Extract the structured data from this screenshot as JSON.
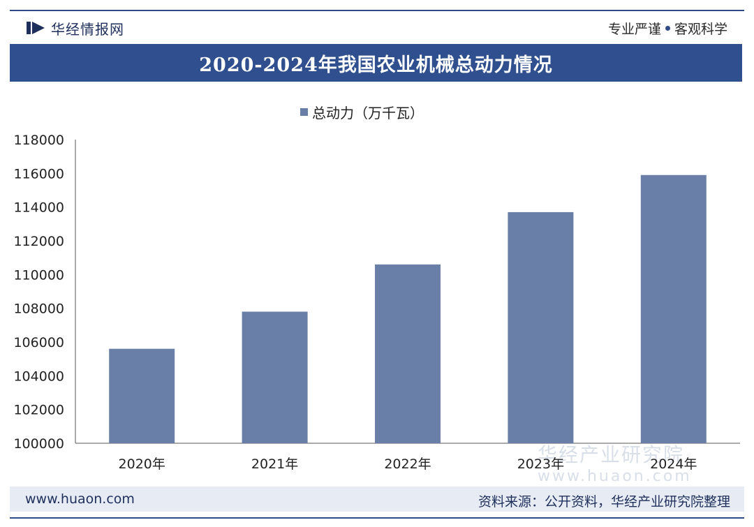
{
  "header": {
    "brand_name": "华经情报网",
    "slogan_left": "专业严谨",
    "slogan_right": "客观科学"
  },
  "watermark": {
    "text": "华经产业研究院",
    "url": "www.huaon.com"
  },
  "footer": {
    "website": "www.huaon.com",
    "source": "资料来源：公开资料，华经产业研究院整理"
  },
  "colors": {
    "brand": "#2f4f8f",
    "bar": "#6a7fa8",
    "axis": "#555555"
  },
  "chart_data": {
    "type": "bar",
    "title": "2020-2024年我国农业机械总动力情况",
    "categories": [
      "2020年",
      "2021年",
      "2022年",
      "2023年",
      "2024年"
    ],
    "series": [
      {
        "name": "总动力（万千瓦）",
        "values": [
          105600,
          107800,
          110600,
          113700,
          115900
        ]
      }
    ],
    "xlabel": "",
    "ylabel": "",
    "ylim": [
      100000,
      118000
    ],
    "yticks": [
      100000,
      102000,
      104000,
      106000,
      108000,
      110000,
      112000,
      114000,
      116000,
      118000
    ],
    "grid": false,
    "legend_position": "top-center"
  }
}
